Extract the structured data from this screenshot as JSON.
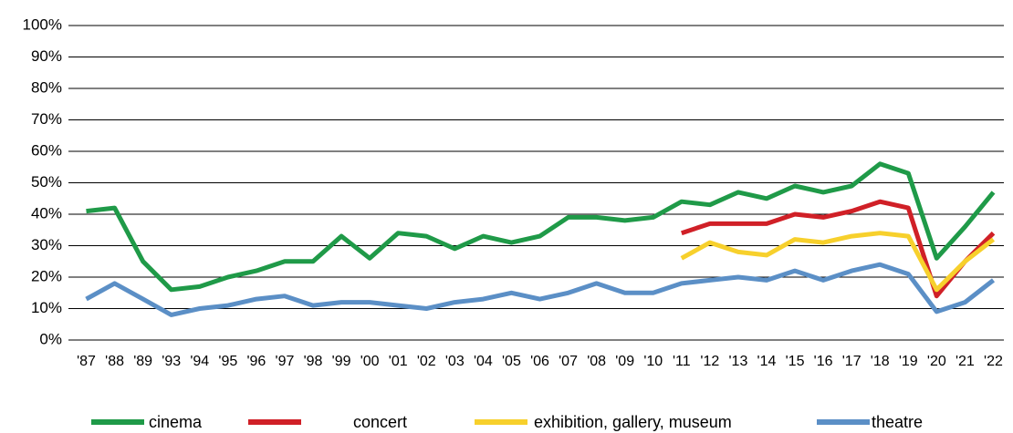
{
  "chart_data": {
    "type": "line",
    "categories": [
      "'87",
      "'88",
      "'89",
      "'93",
      "'94",
      "'95",
      "'96",
      "'97",
      "'98",
      "'99",
      "'00",
      "'01",
      "'02",
      "'03",
      "'04",
      "'05",
      "'06",
      "'07",
      "'08",
      "'09",
      "'10",
      "'11",
      "'12",
      "'13",
      "'14",
      "'15",
      "'16",
      "'17",
      "'18",
      "'19",
      "'20",
      "'21",
      "'22"
    ],
    "series": [
      {
        "name": "cinema",
        "color": "#1f9a48",
        "values": [
          41,
          42,
          25,
          16,
          17,
          20,
          22,
          25,
          25,
          33,
          26,
          34,
          33,
          29,
          33,
          31,
          33,
          39,
          39,
          38,
          39,
          44,
          43,
          47,
          45,
          49,
          47,
          49,
          56,
          53,
          26,
          36,
          47
        ]
      },
      {
        "name": "concert",
        "color": "#d02027",
        "values": [
          null,
          null,
          null,
          null,
          null,
          null,
          null,
          null,
          null,
          null,
          null,
          null,
          null,
          null,
          null,
          null,
          null,
          null,
          null,
          null,
          null,
          34,
          37,
          37,
          37,
          40,
          39,
          41,
          44,
          42,
          14,
          25,
          34
        ]
      },
      {
        "name": "exhibition, gallery, museum",
        "color": "#f7d02c",
        "values": [
          null,
          null,
          null,
          null,
          null,
          null,
          null,
          null,
          null,
          null,
          null,
          null,
          null,
          null,
          null,
          null,
          null,
          null,
          null,
          null,
          null,
          26,
          31,
          28,
          27,
          32,
          31,
          33,
          34,
          33,
          16,
          25,
          32
        ]
      },
      {
        "name": "theatre",
        "color": "#5b8fc6",
        "values": [
          13,
          18,
          13,
          8,
          10,
          11,
          13,
          14,
          11,
          12,
          12,
          11,
          10,
          12,
          13,
          15,
          13,
          15,
          18,
          15,
          15,
          18,
          19,
          20,
          19,
          22,
          19,
          22,
          24,
          21,
          9,
          12,
          19
        ]
      }
    ],
    "ylim": [
      0,
      100
    ],
    "yticks": [
      {
        "value": 0,
        "label": "0%"
      },
      {
        "value": 10,
        "label": "10%"
      },
      {
        "value": 20,
        "label": "20%"
      },
      {
        "value": 30,
        "label": "30%"
      },
      {
        "value": 40,
        "label": "40%"
      },
      {
        "value": 50,
        "label": "50%"
      },
      {
        "value": 60,
        "label": "60%"
      },
      {
        "value": 70,
        "label": "70%"
      },
      {
        "value": 80,
        "label": "80%"
      },
      {
        "value": 90,
        "label": "90%"
      },
      {
        "value": 100,
        "label": "100%"
      }
    ],
    "grid": true,
    "legend": "bottom"
  }
}
